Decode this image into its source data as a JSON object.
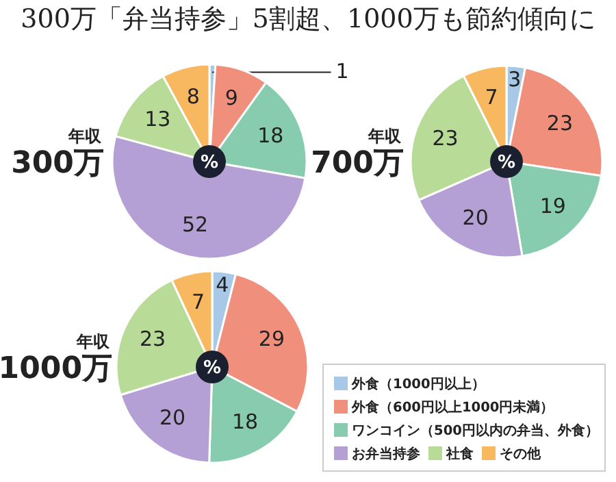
{
  "chart_data": [
    {
      "type": "pie",
      "title": "300万「弁当持参」5割超、1000万も節約傾向に",
      "annotations": [
        "年収",
        "300万",
        "%"
      ],
      "categories": [
        null,
        null,
        null,
        null,
        null,
        null
      ],
      "values": [
        1,
        9,
        18,
        52,
        13,
        8
      ],
      "colors": [
        "#a8c8e8",
        "#f0907c",
        "#88ccb0",
        "#b4a0d4",
        "#b8dc98",
        "#f8b860"
      ],
      "data_labels": true,
      "legend": false
    },
    {
      "type": "pie",
      "annotations": [
        "年収",
        "700万",
        "%"
      ],
      "categories": [
        null,
        null,
        null,
        null,
        null,
        null
      ],
      "values": [
        3,
        23,
        19,
        20,
        23,
        7
      ],
      "colors": [
        "#a8c8e8",
        "#f0907c",
        "#88ccb0",
        "#b4a0d4",
        "#b8dc98",
        "#f8b860"
      ],
      "data_labels": true,
      "legend": false
    },
    {
      "type": "pie",
      "annotations": [
        "年収",
        "1000万",
        "%"
      ],
      "categories": [
        "外食（1000円以上）",
        "外食（600円以上1000円未満）",
        "ワンコイン（500円以内の弁当、外食）",
        "お弁当持参",
        "社食",
        "その他"
      ],
      "values": [
        4,
        29,
        18,
        20,
        23,
        7
      ],
      "colors": [
        "#a8c8e8",
        "#f0907c",
        "#88ccb0",
        "#b4a0d4",
        "#b8dc98",
        "#f8b860"
      ],
      "data_labels": true,
      "legend": "bottom right"
    }
  ]
}
